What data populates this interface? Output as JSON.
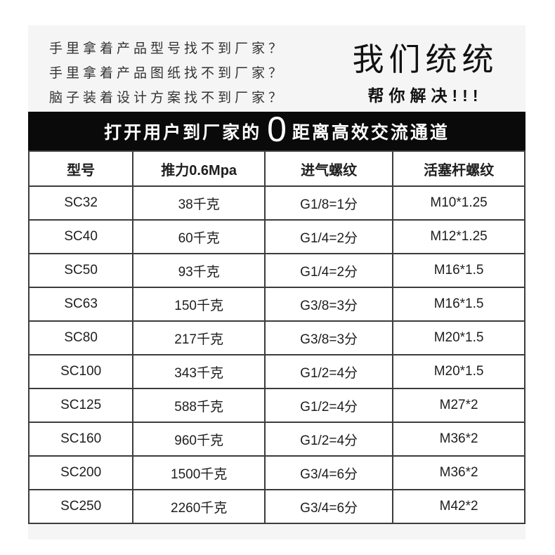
{
  "colors": {
    "page_background": "#ffffff",
    "panel_background": "#f5f5f5",
    "banner_background": "#0a0a0a",
    "banner_text": "#ffffff",
    "table_border": "#3c3c3c",
    "text": "#1e1e1e"
  },
  "intro": {
    "questions": [
      "手里拿着产品型号找不到厂家？",
      "手里拿着产品图纸找不到厂家？",
      "脑子装着设计方案找不到厂家？"
    ],
    "headline": "我们统统",
    "subheadline": "帮你解决!!!"
  },
  "banner": {
    "prefix": "打开用户到厂家的",
    "zero": "0",
    "suffix": "距离高效交流通道"
  },
  "table": {
    "headers": [
      "型号",
      "推力0.6Mpa",
      "进气螺纹",
      "活塞杆螺纹"
    ],
    "rows": [
      {
        "model": "SC32",
        "thrust": "38千克",
        "intake": "G1/8=1分",
        "rod": "M10*1.25"
      },
      {
        "model": "SC40",
        "thrust": "60千克",
        "intake": "G1/4=2分",
        "rod": "M12*1.25"
      },
      {
        "model": "SC50",
        "thrust": "93千克",
        "intake": "G1/4=2分",
        "rod": "M16*1.5"
      },
      {
        "model": "SC63",
        "thrust": "150千克",
        "intake": "G3/8=3分",
        "rod": "M16*1.5"
      },
      {
        "model": "SC80",
        "thrust": "217千克",
        "intake": "G3/8=3分",
        "rod": "M20*1.5"
      },
      {
        "model": "SC100",
        "thrust": "343千克",
        "intake": "G1/2=4分",
        "rod": "M20*1.5"
      },
      {
        "model": "SC125",
        "thrust": "588千克",
        "intake": "G1/2=4分",
        "rod": "M27*2"
      },
      {
        "model": "SC160",
        "thrust": "960千克",
        "intake": "G1/2=4分",
        "rod": "M36*2"
      },
      {
        "model": "SC200",
        "thrust": "1500千克",
        "intake": "G3/4=6分",
        "rod": "M36*2"
      },
      {
        "model": "SC250",
        "thrust": "2260千克",
        "intake": "G3/4=6分",
        "rod": "M42*2"
      }
    ]
  }
}
